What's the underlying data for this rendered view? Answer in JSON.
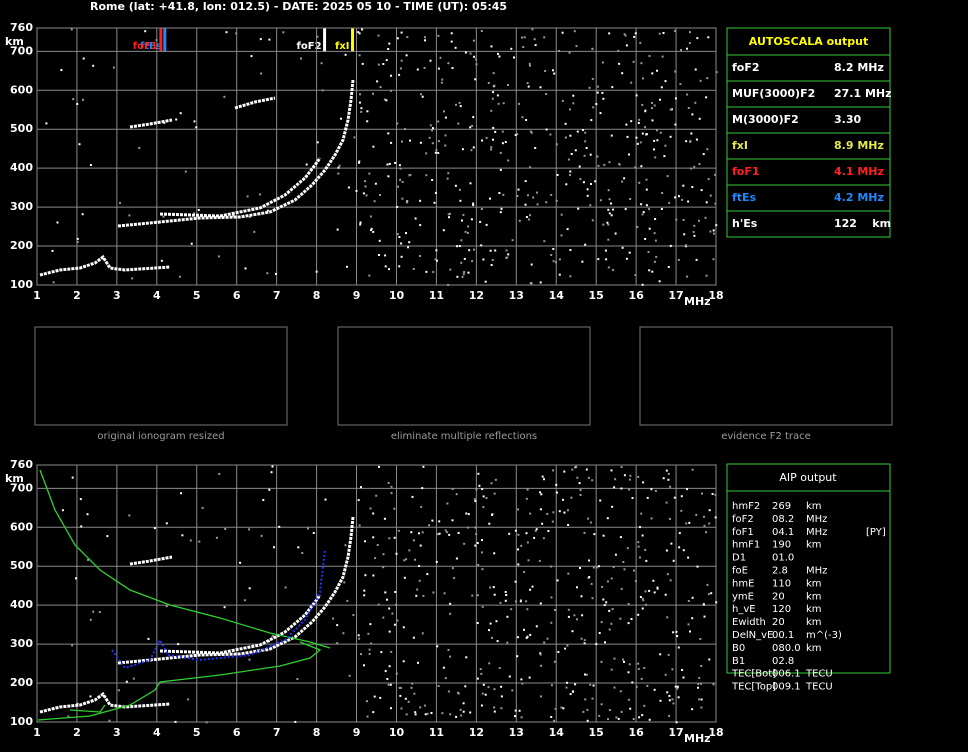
{
  "header": {
    "title": "Rome (lat: +41.8, lon: 012.5) - DATE: 2025 05 10 - TIME (UT): 05:45"
  },
  "ionogram_top": {
    "x_unit": "MHz",
    "y_unit": "km",
    "xlim": [
      1,
      18
    ],
    "ylim": [
      100,
      760
    ],
    "xticks": [
      1,
      2,
      3,
      4,
      5,
      6,
      7,
      8,
      9,
      10,
      11,
      12,
      13,
      14,
      15,
      16,
      17,
      18
    ],
    "yticks": [
      100,
      200,
      300,
      400,
      500,
      600,
      700,
      760
    ],
    "markers": [
      {
        "label": "foF1",
        "value": 4.1,
        "color": "#ff2020"
      },
      {
        "label": "ftEs",
        "value": 4.2,
        "color": "#2288ff"
      },
      {
        "label": "foF2",
        "value": 8.2,
        "color": "#ffffff"
      },
      {
        "label": "fxI",
        "value": 8.9,
        "color": "#ffff00"
      }
    ]
  },
  "thumbnails": {
    "captions": [
      "original ionogram resized",
      "eliminate multiple reflections",
      "evidence F2 trace"
    ]
  },
  "ionogram_bottom": {
    "x_unit": "MHz",
    "y_unit": "km",
    "xlim": [
      1,
      18
    ],
    "ylim": [
      100,
      760
    ],
    "xticks": [
      1,
      2,
      3,
      4,
      5,
      6,
      7,
      8,
      9,
      10,
      11,
      12,
      13,
      14,
      15,
      16,
      17,
      18
    ],
    "yticks": [
      100,
      200,
      300,
      400,
      500,
      600,
      700,
      760
    ]
  },
  "autoscala": {
    "title": "AUTOSCALA output",
    "rows": [
      {
        "cells": [
          "foF2",
          "8.2 MHz"
        ],
        "color": "#ffffff"
      },
      {
        "cells": [
          "MUF(3000)F2",
          "27.1 MHz"
        ],
        "color": "#ffffff"
      },
      {
        "cells": [
          "M(3000)F2",
          "3.30"
        ],
        "color": "#ffffff"
      },
      {
        "cells": [
          "fxI",
          "8.9 MHz"
        ],
        "color": "#e6e64d"
      },
      {
        "cells": [
          "foF1",
          "4.1 MHz"
        ],
        "color": "#ff2020"
      },
      {
        "cells": [
          "ftEs",
          "4.2 MHz"
        ],
        "color": "#2288ff"
      },
      {
        "cells": [
          "h'Es",
          "122    km"
        ],
        "color": "#ffffff"
      }
    ]
  },
  "aip": {
    "title": "AIP output",
    "rows": [
      [
        "hmF2",
        "269",
        "km"
      ],
      [
        "foF2",
        "08.2",
        "MHz"
      ],
      [
        "foF1",
        "04.1",
        "MHz",
        "[PY]"
      ],
      [
        "hmF1",
        "190",
        "km"
      ],
      [
        "D1",
        "01.0"
      ],
      [
        "foE",
        "2.8",
        "MHz"
      ],
      [
        "hmE",
        "110",
        "km"
      ],
      [
        "ymE",
        "20",
        "km"
      ],
      [
        "h_vE",
        "120",
        "km"
      ],
      [
        "Ewidth",
        "20",
        "km"
      ],
      [
        "DelN_vE",
        "00.1",
        "m^(-3)"
      ],
      [
        "B0",
        "080.0",
        "km"
      ],
      [
        "B1",
        "02.8"
      ],
      [
        "TEC[Bot]",
        "006.1",
        "TECU"
      ],
      [
        "TEC[Top]",
        "009.1",
        "TECU"
      ]
    ]
  }
}
